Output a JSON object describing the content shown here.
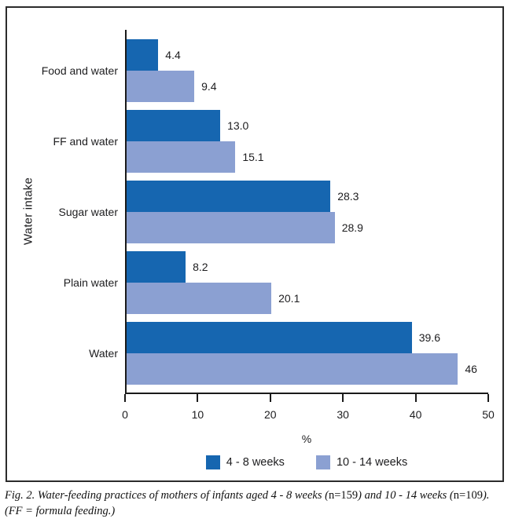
{
  "chart_data": {
    "type": "bar",
    "orientation": "horizontal",
    "title": "",
    "xlabel": "%",
    "ylabel": "Water intake",
    "xlim": [
      0,
      50
    ],
    "x_ticks": [
      "0",
      "10",
      "20",
      "30",
      "40",
      "50"
    ],
    "grid": false,
    "legend_position": "bottom",
    "categories": [
      "Food and water",
      "FF and water",
      "Sugar water",
      "Plain water",
      "Water"
    ],
    "series": [
      {
        "name": "4 - 8 weeks",
        "color": "#1666B0",
        "values": [
          4.4,
          13.0,
          28.3,
          8.2,
          39.6
        ],
        "value_labels": [
          "4.4",
          "13.0",
          "28.3",
          "8.2",
          "39.6"
        ]
      },
      {
        "name": "10 - 14 weeks",
        "color": "#8BA0D2",
        "values": [
          9.4,
          15.1,
          28.9,
          20.1,
          46
        ],
        "value_labels": [
          "9.4",
          "15.1",
          "28.9",
          "20.1",
          "46"
        ]
      }
    ]
  },
  "caption": {
    "line1_parts": [
      {
        "text": "Fig. 2. Water-feeding practices of mothers of infants aged 4 - 8 weeks ("
      },
      {
        "text": "n=159"
      },
      {
        "text": ") and 10 - 14 weeks ("
      },
      {
        "text": "n=109"
      },
      {
        "text": ")."
      }
    ],
    "line2": "(FF = formula feeding.)"
  }
}
